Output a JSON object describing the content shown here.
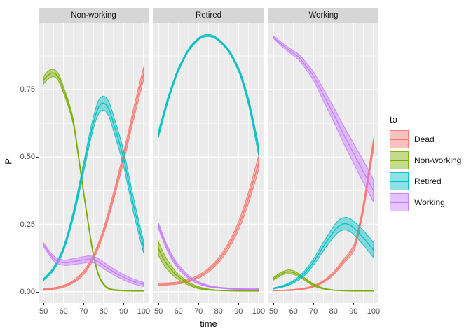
{
  "figure": {
    "y_axis": {
      "title": "P",
      "tick_labels": [
        "0.00",
        "0.25",
        "0.50",
        "0.75"
      ],
      "tick_values": [
        0.0,
        0.25,
        0.5,
        0.75
      ]
    },
    "x_axis": {
      "title": "time",
      "tick_values": [
        50,
        60,
        70,
        80,
        90,
        100
      ]
    },
    "legend": {
      "title": "to",
      "entries": [
        {
          "label": "Dead",
          "color": "#F8766D"
        },
        {
          "label": "Non-working",
          "color": "#7CAE00"
        },
        {
          "label": "Retired",
          "color": "#00BFC4"
        },
        {
          "label": "Working",
          "color": "#C77CFF"
        }
      ]
    }
  },
  "chart_data": {
    "type": "area",
    "mark": "confidence ribbons with center line (ggplot2 geom_ribbon style)",
    "title": "",
    "xlabel": "time",
    "ylabel": "P",
    "x_domain": [
      47.5,
      102.5
    ],
    "y_domain": [
      -0.042,
      0.997
    ],
    "x_major_gridlines": [
      50,
      60,
      70,
      80,
      90,
      100
    ],
    "x_minor_gridlines": [
      55,
      65,
      75,
      85,
      95
    ],
    "y_major_gridlines": [
      0.0,
      0.25,
      0.5,
      0.75
    ],
    "y_minor_gridlines": [
      0.125,
      0.375,
      0.625,
      0.875
    ],
    "grid": "on",
    "legend_position": "right",
    "panel_background": "#EBEBEB",
    "facets": [
      {
        "name": "Non-working",
        "series": [
          {
            "name": "Dead",
            "color": "#F8766D",
            "t": [
              50,
              55,
              60,
              65,
              70,
              75,
              80,
              85,
              90,
              95,
              100
            ],
            "mid": [
              0.008,
              0.012,
              0.02,
              0.038,
              0.07,
              0.13,
              0.225,
              0.355,
              0.5,
              0.66,
              0.81
            ],
            "hw": [
              0.003,
              0.003,
              0.004,
              0.005,
              0.007,
              0.009,
              0.012,
              0.015,
              0.018,
              0.021,
              0.024
            ]
          },
          {
            "name": "Non-working",
            "color": "#7CAE00",
            "t": [
              50,
              52.5,
              55,
              57.5,
              60,
              62.5,
              65,
              67.5,
              70,
              72.5,
              75,
              77.5,
              80,
              82.5,
              85,
              90,
              95,
              100
            ],
            "mid": [
              0.785,
              0.805,
              0.812,
              0.795,
              0.748,
              0.695,
              0.625,
              0.5,
              0.37,
              0.245,
              0.135,
              0.062,
              0.028,
              0.012,
              0.007,
              0.004,
              0.003,
              0.003
            ],
            "hw": [
              0.014,
              0.015,
              0.014,
              0.013,
              0.012,
              0.011,
              0.01,
              0.009,
              0.008,
              0.007,
              0.006,
              0.004,
              0.003,
              0.002,
              0.002,
              0.001,
              0.001,
              0.001
            ]
          },
          {
            "name": "Retired",
            "color": "#00BFC4",
            "t": [
              50,
              55,
              60,
              65,
              70,
              72.5,
              75,
              77.5,
              80,
              82.5,
              85,
              90,
              95,
              100
            ],
            "mid": [
              0.045,
              0.085,
              0.16,
              0.29,
              0.46,
              0.55,
              0.63,
              0.685,
              0.7,
              0.68,
              0.625,
              0.495,
              0.32,
              0.165
            ],
            "hw": [
              0.004,
              0.006,
              0.009,
              0.013,
              0.018,
              0.02,
              0.022,
              0.025,
              0.026,
              0.027,
              0.028,
              0.029,
              0.027,
              0.022
            ]
          },
          {
            "name": "Working",
            "color": "#C77CFF",
            "t": [
              50,
              55,
              60,
              65,
              70,
              73,
              76,
              80,
              85,
              90,
              95,
              100
            ],
            "mid": [
              0.175,
              0.124,
              0.108,
              0.112,
              0.118,
              0.121,
              0.116,
              0.098,
              0.074,
              0.054,
              0.038,
              0.027
            ],
            "hw": [
              0.007,
              0.009,
              0.01,
              0.011,
              0.012,
              0.012,
              0.012,
              0.012,
              0.011,
              0.01,
              0.009,
              0.008
            ]
          }
        ]
      },
      {
        "name": "Retired",
        "series": [
          {
            "name": "Dead",
            "color": "#F8766D",
            "t": [
              50,
              55,
              60,
              65,
              70,
              75,
              80,
              85,
              90,
              95,
              100
            ],
            "mid": [
              0.028,
              0.029,
              0.033,
              0.041,
              0.056,
              0.08,
              0.117,
              0.17,
              0.245,
              0.35,
              0.478
            ],
            "hw": [
              0.004,
              0.004,
              0.004,
              0.005,
              0.006,
              0.007,
              0.009,
              0.012,
              0.016,
              0.021,
              0.026
            ]
          },
          {
            "name": "Non-working",
            "color": "#7CAE00",
            "t": [
              50,
              52.5,
              55,
              57.5,
              60,
              65,
              70,
              75,
              80,
              90,
              100
            ],
            "mid": [
              0.16,
              0.122,
              0.094,
              0.072,
              0.055,
              0.03,
              0.015,
              0.008,
              0.005,
              0.003,
              0.003
            ],
            "hw": [
              0.026,
              0.021,
              0.017,
              0.013,
              0.01,
              0.006,
              0.004,
              0.002,
              0.001,
              0.001,
              0.001
            ]
          },
          {
            "name": "Retired",
            "color": "#00BFC4",
            "t": [
              50,
              52.5,
              55,
              57.5,
              60,
              65,
              70,
              72.5,
              75,
              77.5,
              80,
              85,
              90,
              92.5,
              95,
              97.5,
              100
            ],
            "mid": [
              0.585,
              0.655,
              0.72,
              0.775,
              0.825,
              0.897,
              0.938,
              0.948,
              0.951,
              0.946,
              0.934,
              0.895,
              0.825,
              0.77,
              0.705,
              0.62,
              0.525
            ],
            "hw": [
              0.013,
              0.011,
              0.01,
              0.008,
              0.007,
              0.005,
              0.004,
              0.004,
              0.004,
              0.004,
              0.004,
              0.005,
              0.008,
              0.01,
              0.013,
              0.016,
              0.02
            ]
          },
          {
            "name": "Working",
            "color": "#C77CFF",
            "t": [
              50,
              52.5,
              55,
              57.5,
              60,
              65,
              70,
              75,
              80,
              85,
              90,
              95,
              100
            ],
            "mid": [
              0.245,
              0.195,
              0.152,
              0.118,
              0.092,
              0.055,
              0.033,
              0.021,
              0.015,
              0.012,
              0.01,
              0.009,
              0.009
            ],
            "hw": [
              0.011,
              0.01,
              0.01,
              0.009,
              0.008,
              0.006,
              0.004,
              0.003,
              0.002,
              0.002,
              0.002,
              0.002,
              0.002
            ]
          }
        ]
      },
      {
        "name": "Working",
        "series": [
          {
            "name": "Dead",
            "color": "#F8766D",
            "t": [
              50,
              55,
              60,
              65,
              70,
              75,
              80,
              85,
              90,
              92.5,
              95,
              97.5,
              100
            ],
            "mid": [
              0.004,
              0.005,
              0.007,
              0.011,
              0.02,
              0.038,
              0.068,
              0.112,
              0.16,
              0.225,
              0.315,
              0.43,
              0.55
            ],
            "hw": [
              0.001,
              0.001,
              0.002,
              0.002,
              0.003,
              0.004,
              0.006,
              0.008,
              0.011,
              0.013,
              0.016,
              0.018,
              0.02
            ]
          },
          {
            "name": "Non-working",
            "color": "#7CAE00",
            "t": [
              50,
              52.5,
              55,
              57.5,
              60,
              62.5,
              65,
              70,
              75,
              80,
              85,
              90,
              100
            ],
            "mid": [
              0.048,
              0.06,
              0.07,
              0.074,
              0.071,
              0.062,
              0.05,
              0.026,
              0.012,
              0.006,
              0.004,
              0.003,
              0.003
            ],
            "hw": [
              0.005,
              0.006,
              0.006,
              0.007,
              0.007,
              0.006,
              0.005,
              0.004,
              0.002,
              0.001,
              0.001,
              0.001,
              0.001
            ]
          },
          {
            "name": "Retired",
            "color": "#00BFC4",
            "t": [
              50,
              55,
              60,
              65,
              70,
              75,
              80,
              82.5,
              85,
              87.5,
              90,
              95,
              100
            ],
            "mid": [
              0.012,
              0.021,
              0.037,
              0.065,
              0.11,
              0.168,
              0.222,
              0.243,
              0.252,
              0.25,
              0.238,
              0.2,
              0.155
            ],
            "hw": [
              0.002,
              0.003,
              0.005,
              0.008,
              0.012,
              0.016,
              0.02,
              0.022,
              0.023,
              0.024,
              0.025,
              0.027,
              0.028
            ]
          },
          {
            "name": "Working",
            "color": "#C77CFF",
            "t": [
              50,
              55,
              60,
              62.5,
              65,
              70,
              75,
              80,
              85,
              90,
              95,
              100
            ],
            "mid": [
              0.945,
              0.912,
              0.885,
              0.872,
              0.85,
              0.8,
              0.73,
              0.66,
              0.585,
              0.515,
              0.445,
              0.375
            ],
            "hw": [
              0.005,
              0.007,
              0.009,
              0.01,
              0.012,
              0.016,
              0.022,
              0.027,
              0.032,
              0.037,
              0.041,
              0.042
            ]
          }
        ]
      }
    ]
  }
}
